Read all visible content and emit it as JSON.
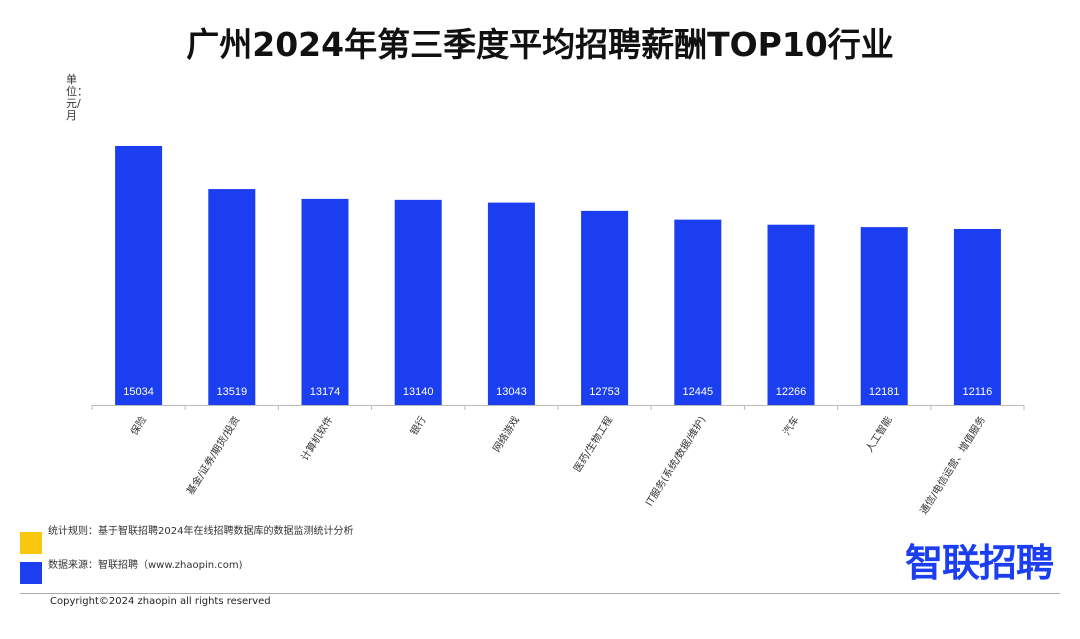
{
  "title": "广州2024年第三季度平均招聘薪酬TOP10行业",
  "chart_data": {
    "type": "bar",
    "title": "广州2024年第三季度平均招聘薪酬TOP10行业",
    "ylabel": "单位：元/月",
    "xlabel": "",
    "categories": [
      "保险",
      "基金/证券/期货/投资",
      "计算机软件",
      "银行",
      "网络游戏",
      "医药/生物工程",
      "IT服务(系统/数据/维护)",
      "汽车",
      "人工智能",
      "通信/电信运营、增值服务"
    ],
    "values": [
      15034,
      13519,
      13174,
      13140,
      13043,
      12753,
      12445,
      12266,
      12181,
      12116
    ],
    "ylim": [
      5927,
      16000
    ],
    "grid": false,
    "bar_color": "#1b3ff0"
  },
  "footer": {
    "rule_label": "统计规则：基于智联招聘2024年在线招聘数据库的数据监测统计分析",
    "source_label": "数据来源：智联招聘（www.zhaopin.com)",
    "copyright": "Copyright©2024 zhaopin all rights reserved",
    "logo_text": "智联招聘",
    "colors": {
      "yellow": "#f9c80e",
      "blue": "#1b3ff0"
    }
  }
}
